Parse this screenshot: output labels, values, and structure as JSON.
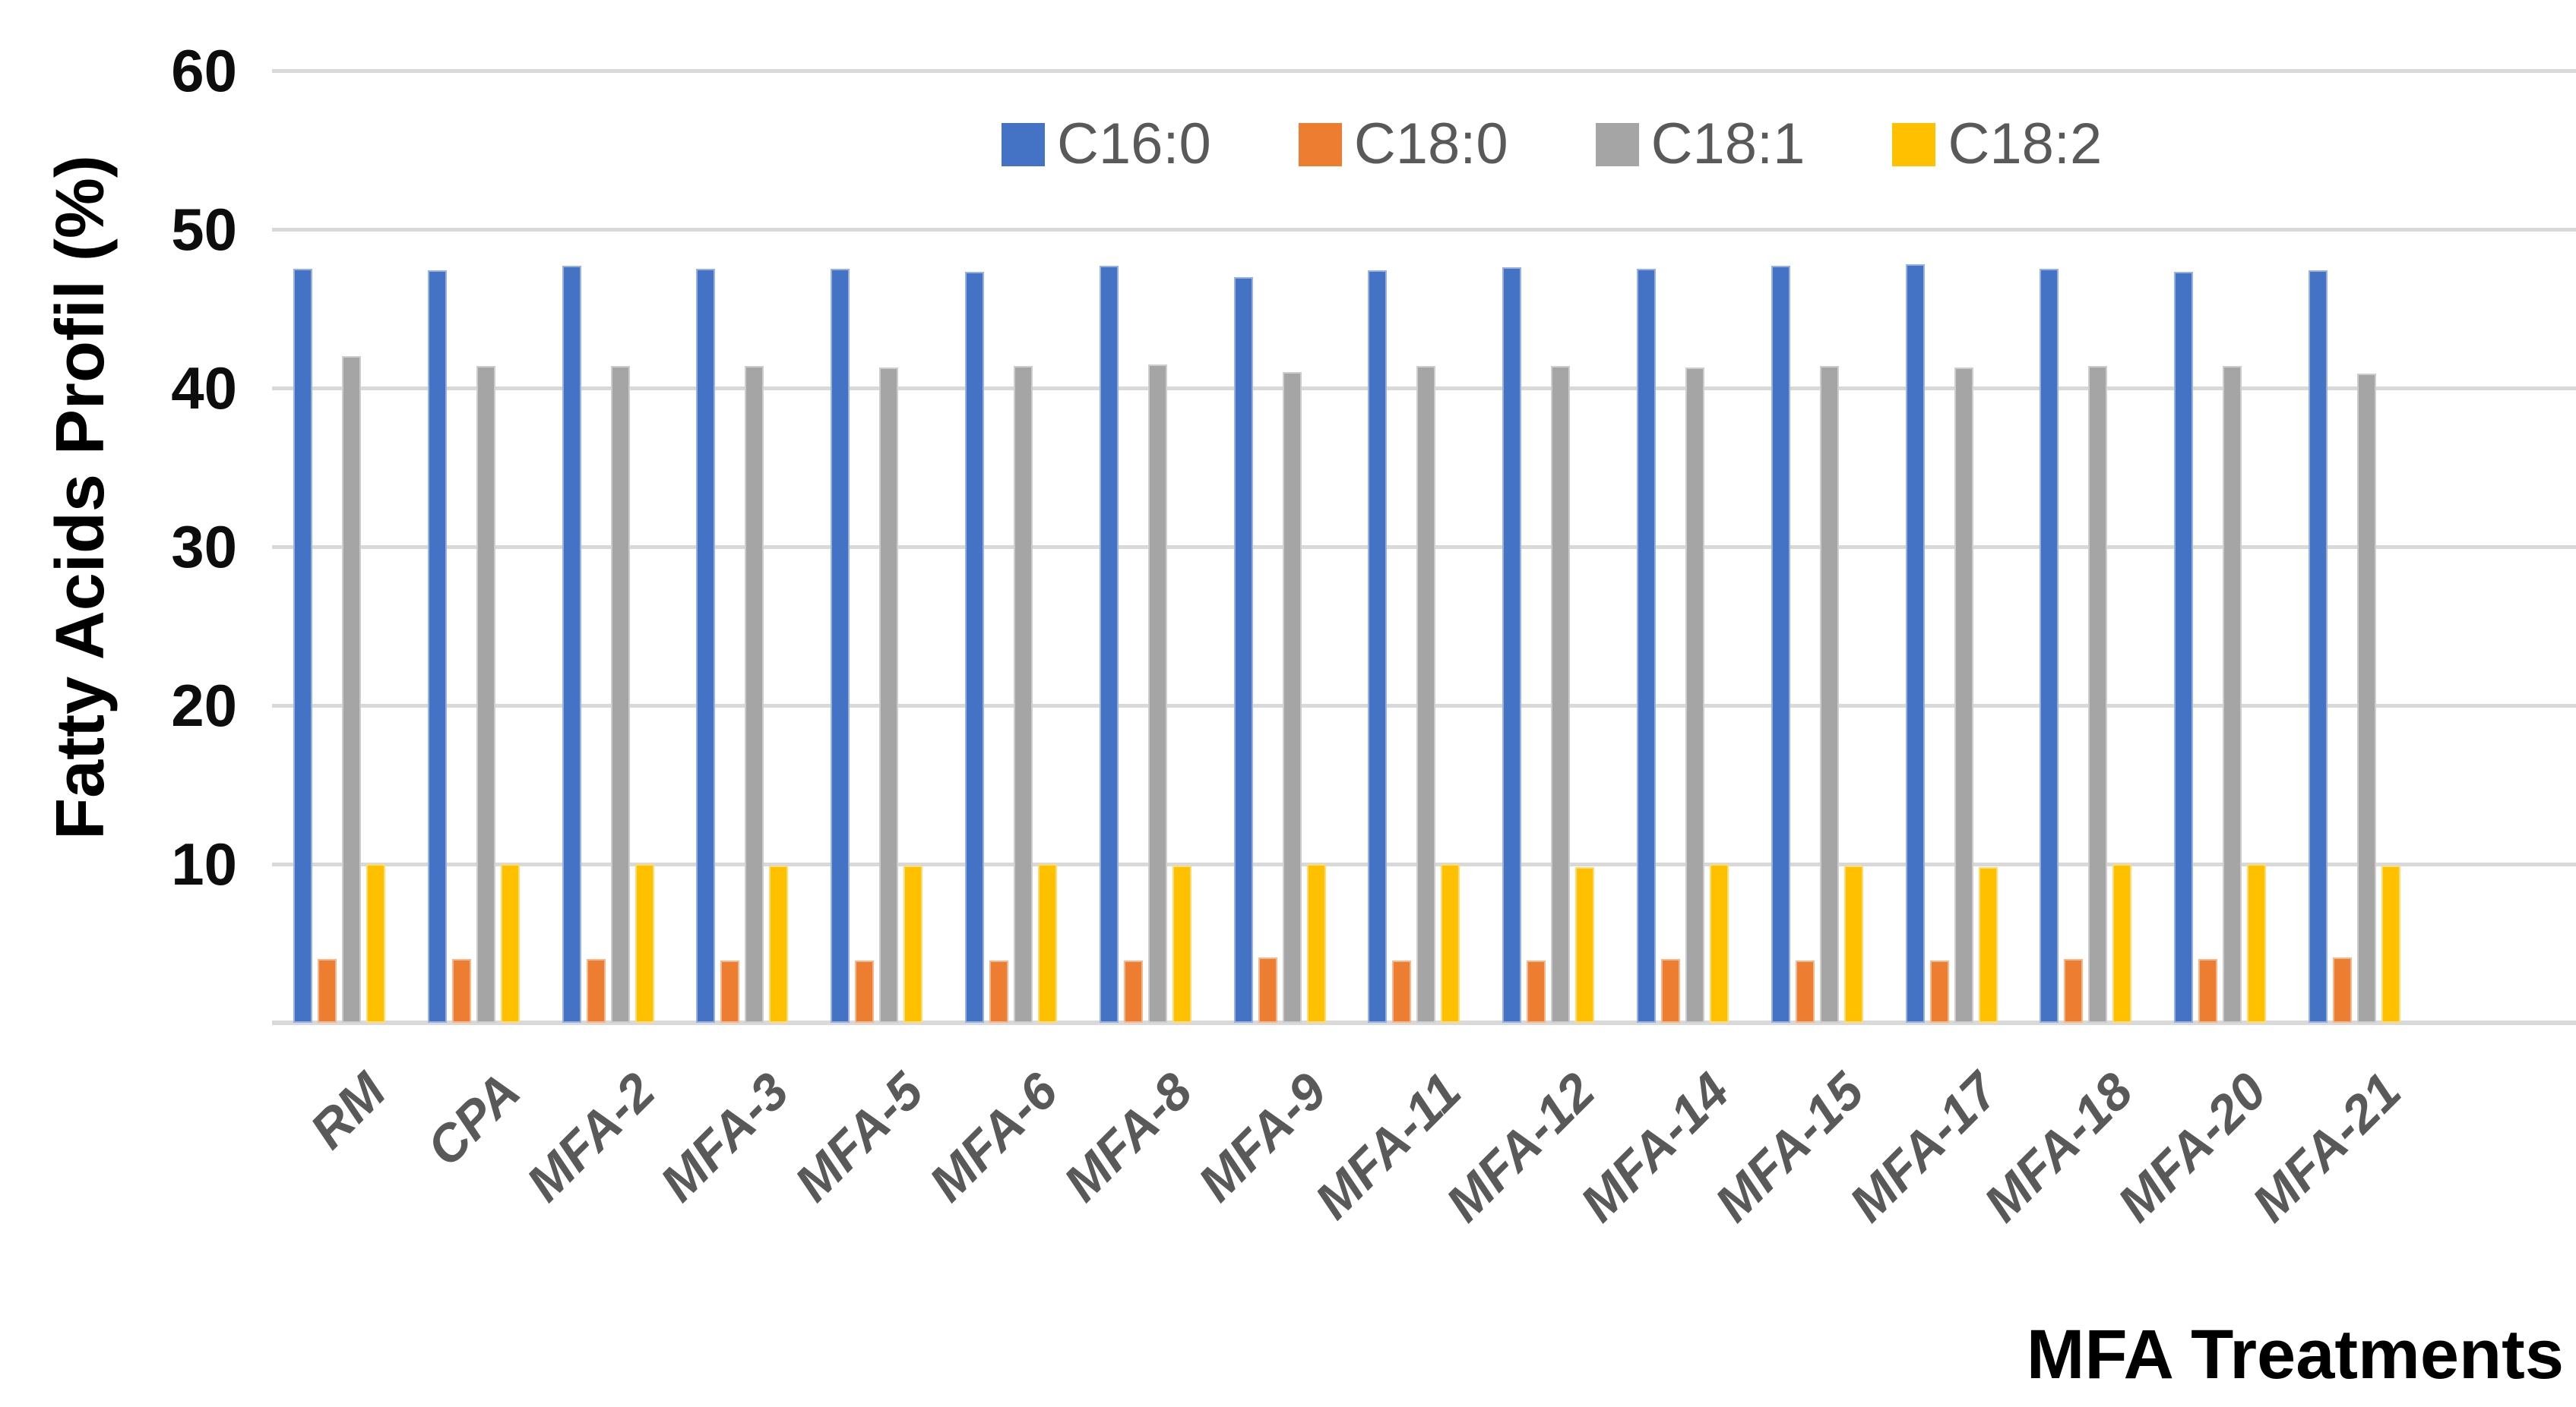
{
  "chart_data": {
    "type": "bar",
    "title": "",
    "xlabel": "MFA Treatments",
    "ylabel": "Fatty Acids Profil (%)",
    "ylim": [
      0,
      60
    ],
    "yticks": [
      60,
      50,
      40,
      30,
      20,
      10
    ],
    "grid": true,
    "legend_position": "top-inside",
    "categories": [
      "RM",
      "CPA",
      "MFA-2",
      "MFA-3",
      "MFA-5",
      "MFA-6",
      "MFA-8",
      "MFA-9",
      "MFA-11",
      "MFA-12",
      "MFA-14",
      "MFA-15",
      "MFA-17",
      "MFA-18",
      "MFA-20",
      "MFA-21"
    ],
    "series": [
      {
        "name": "C16:0",
        "color": "#4472C4",
        "values": [
          47.5,
          47.4,
          47.7,
          47.5,
          47.5,
          47.3,
          47.7,
          47.0,
          47.4,
          47.6,
          47.5,
          47.7,
          47.8,
          47.5,
          47.3,
          47.4
        ]
      },
      {
        "name": "C18:0",
        "color": "#ED7D31",
        "values": [
          4.0,
          4.0,
          4.0,
          3.9,
          3.9,
          3.9,
          3.9,
          4.1,
          3.9,
          3.9,
          4.0,
          3.9,
          3.9,
          4.0,
          4.0,
          4.1
        ]
      },
      {
        "name": "C18:1",
        "color": "#A5A5A5",
        "values": [
          42.0,
          41.4,
          41.4,
          41.4,
          41.3,
          41.4,
          41.5,
          41.0,
          41.4,
          41.4,
          41.3,
          41.4,
          41.3,
          41.4,
          41.4,
          40.9
        ]
      },
      {
        "name": "C18:2",
        "color": "#FFC000",
        "values": [
          10.0,
          10.0,
          10.0,
          9.9,
          9.9,
          10.0,
          9.9,
          10.0,
          10.0,
          9.8,
          10.0,
          9.9,
          9.8,
          10.0,
          10.0,
          9.9
        ]
      }
    ]
  },
  "colors": {
    "gridline": "#d9d9d9",
    "tick_text": "#0d0d0d",
    "category_text": "#595959",
    "legend_text": "#595959",
    "title_text": "#000000"
  }
}
